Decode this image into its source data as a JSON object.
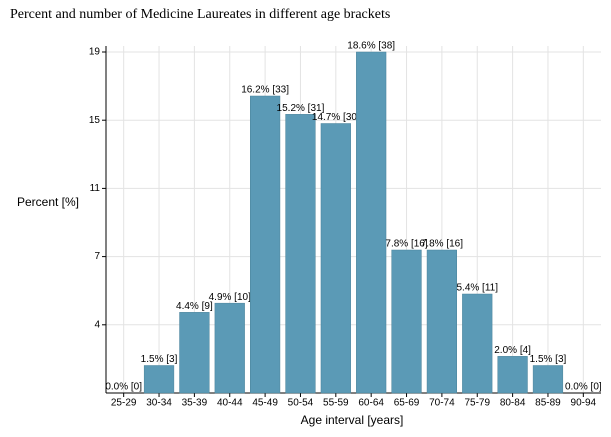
{
  "chart_data": {
    "type": "bar",
    "title": "Percent and number of Medicine Laureates in different age brackets",
    "x_label": "Age interval [years]",
    "y_label": "Percent [%]",
    "categories": [
      "25-29",
      "30-34",
      "35-39",
      "40-44",
      "45-49",
      "50-54",
      "55-59",
      "60-64",
      "65-69",
      "70-74",
      "75-79",
      "80-84",
      "85-89",
      "90-94"
    ],
    "values": [
      0.0,
      1.5,
      4.4,
      4.9,
      16.2,
      15.2,
      14.7,
      18.6,
      7.8,
      7.8,
      5.4,
      2.0,
      1.5,
      0.0
    ],
    "value_labels": [
      "0.0% [0]",
      "1.5% [3]",
      "4.4% [9]",
      "4.9% [10]",
      "16.2% [33]",
      "15.2% [31]",
      "14.7% [30]",
      "18.6% [38]",
      "7.8% [16]",
      "7.8% [16]",
      "5.4% [11]",
      "2.0% [4]",
      "1.5% [3]",
      "0.0% [0]"
    ],
    "color": "#5b9ab6",
    "ylim": [
      0,
      18.6
    ],
    "yticks": [
      {
        "value": 3.72,
        "label": "4"
      },
      {
        "value": 7.44,
        "label": "7"
      },
      {
        "value": 11.16,
        "label": "11"
      },
      {
        "value": 14.88,
        "label": "15"
      },
      {
        "value": 18.6,
        "label": "19"
      }
    ],
    "grid": true
  }
}
